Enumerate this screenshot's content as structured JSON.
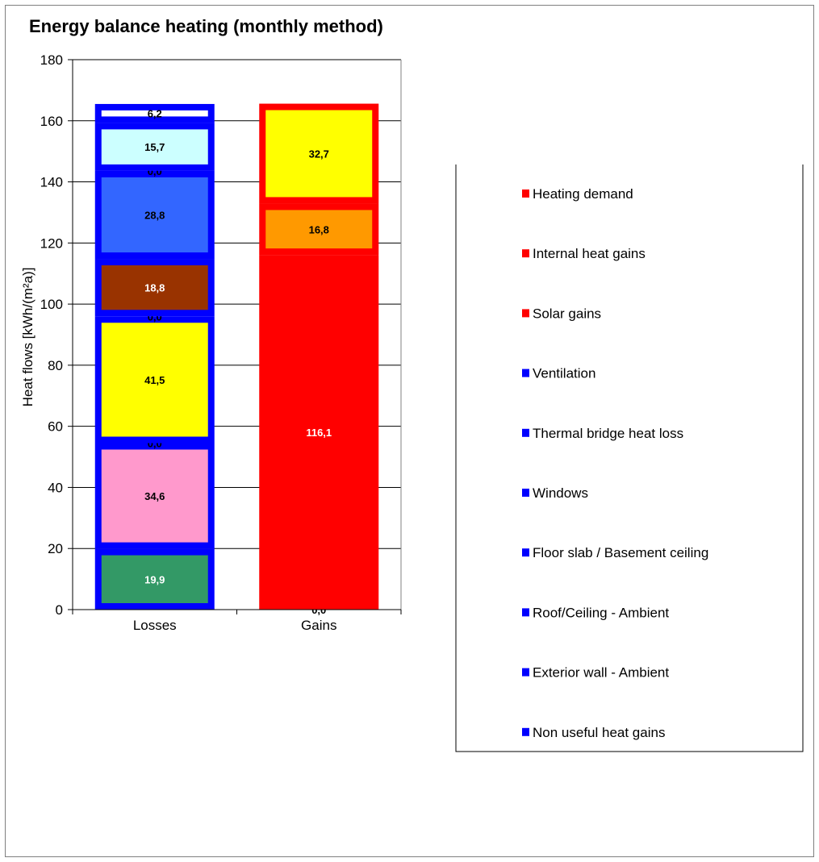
{
  "chart_data": {
    "type": "bar",
    "stacked": true,
    "title": "Energy balance heating (monthly method)",
    "ylabel": "Heat flows [kWh/(m²a)]",
    "xlabel": "",
    "ylim": [
      0,
      180
    ],
    "yticks": [
      0,
      20,
      40,
      60,
      80,
      100,
      120,
      140,
      160,
      180
    ],
    "categories": [
      "Losses",
      "Gains"
    ],
    "grid": true,
    "legend_position": "right",
    "losses_border_color": "#0000ff",
    "gains_border_color": "#ff0000",
    "series": [
      {
        "name": "Non useful heat gains",
        "losses": 19.9,
        "losses_label": "19,9",
        "color": "#339966",
        "text_color": "#ffffff"
      },
      {
        "name": "Exterior wall - Ambient",
        "losses": 34.6,
        "losses_label": "34,6",
        "color": "#ff99cc",
        "text_color": "#000000"
      },
      {
        "name": "Roof/Ceiling - Ambient",
        "losses": 0.0,
        "losses_label": "0,0",
        "color": "#3366ff",
        "text_color": "#000000"
      },
      {
        "name": "Floor slab / Basement ceiling",
        "losses": 41.5,
        "losses_label": "41,5",
        "color": "#ffff00",
        "text_color": "#000000"
      },
      {
        "name": "Windows",
        "losses": 0.0,
        "losses_label": "0,0",
        "color": "#3366ff",
        "text_color": "#000000"
      },
      {
        "name": "Thermal bridge heat loss",
        "losses": 18.8,
        "losses_label": "18,8",
        "color": "#993300",
        "text_color": "#ffffff"
      },
      {
        "name": "Ventilation",
        "losses": 28.8,
        "losses_label": "28,8",
        "color": "#3366ff",
        "text_color": "#000000"
      },
      {
        "name": "Solar gains",
        "losses": 0.0,
        "losses_label": "0,0",
        "color": "#3366ff",
        "text_color": "#000000"
      },
      {
        "name": "Internal heat gains",
        "losses": 15.7,
        "losses_label": "15,7",
        "color": "#ccffff",
        "text_color": "#000000"
      },
      {
        "name": "Heating demand",
        "losses": 6.2,
        "losses_label": "6,2",
        "color": "#ffffff",
        "text_color": "#000000"
      }
    ],
    "gains": [
      {
        "value": 0.0,
        "label": "0,0",
        "color": "#ff0000",
        "text_color": "#000000"
      },
      {
        "value": 116.1,
        "label": "116,1",
        "color": "#ff0000",
        "text_color": "#ffffff"
      },
      {
        "value": 16.8,
        "label": "16,8",
        "color": "#ff9900",
        "text_color": "#000000"
      },
      {
        "value": 32.7,
        "label": "32,7",
        "color": "#ffff00",
        "text_color": "#000000"
      }
    ],
    "legend": [
      {
        "label": "Heating demand",
        "color": "#ff0000"
      },
      {
        "label": "Internal heat gains",
        "color": "#ff0000"
      },
      {
        "label": "Solar gains",
        "color": "#ff0000"
      },
      {
        "label": "Ventilation",
        "color": "#0000ff"
      },
      {
        "label": "Thermal bridge heat loss",
        "color": "#0000ff"
      },
      {
        "label": "Windows",
        "color": "#0000ff"
      },
      {
        "label": "Floor slab / Basement ceiling",
        "color": "#0000ff"
      },
      {
        "label": "Roof/Ceiling - Ambient",
        "color": "#0000ff"
      },
      {
        "label": "Exterior wall - Ambient",
        "color": "#0000ff"
      },
      {
        "label": "Non useful heat gains",
        "color": "#0000ff"
      }
    ]
  }
}
